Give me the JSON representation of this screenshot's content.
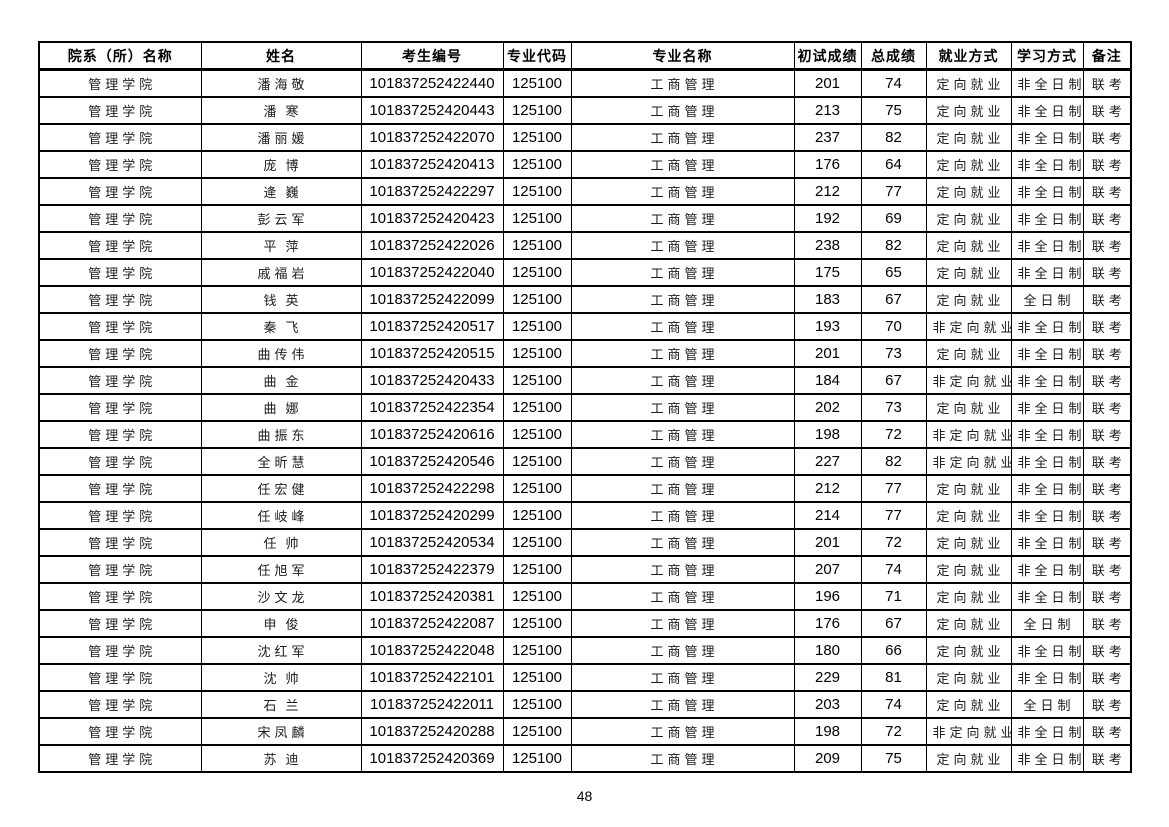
{
  "page": {
    "number": "48"
  },
  "table": {
    "columns": [
      {
        "key": "dept",
        "label": "院系（所）名称"
      },
      {
        "key": "name",
        "label": "姓名"
      },
      {
        "key": "candidate_no",
        "label": "考生编号"
      },
      {
        "key": "major_code",
        "label": "专业代码"
      },
      {
        "key": "major_name",
        "label": "专业名称"
      },
      {
        "key": "initial_score",
        "label": "初试成绩"
      },
      {
        "key": "total_score",
        "label": "总成绩"
      },
      {
        "key": "employment",
        "label": "就业方式"
      },
      {
        "key": "study_mode",
        "label": "学习方式"
      },
      {
        "key": "remark",
        "label": "备注"
      }
    ],
    "rows": [
      [
        "管理学院",
        "潘海敬",
        "101837252422440",
        "125100",
        "工商管理",
        "201",
        "74",
        "定向就业",
        "非全日制",
        "联考"
      ],
      [
        "管理学院",
        "潘寒",
        "101837252420443",
        "125100",
        "工商管理",
        "213",
        "75",
        "定向就业",
        "非全日制",
        "联考"
      ],
      [
        "管理学院",
        "潘丽媛",
        "101837252422070",
        "125100",
        "工商管理",
        "237",
        "82",
        "定向就业",
        "非全日制",
        "联考"
      ],
      [
        "管理学院",
        "庞博",
        "101837252420413",
        "125100",
        "工商管理",
        "176",
        "64",
        "定向就业",
        "非全日制",
        "联考"
      ],
      [
        "管理学院",
        "逄巍",
        "101837252422297",
        "125100",
        "工商管理",
        "212",
        "77",
        "定向就业",
        "非全日制",
        "联考"
      ],
      [
        "管理学院",
        "彭云军",
        "101837252420423",
        "125100",
        "工商管理",
        "192",
        "69",
        "定向就业",
        "非全日制",
        "联考"
      ],
      [
        "管理学院",
        "平萍",
        "101837252422026",
        "125100",
        "工商管理",
        "238",
        "82",
        "定向就业",
        "非全日制",
        "联考"
      ],
      [
        "管理学院",
        "戚福岩",
        "101837252422040",
        "125100",
        "工商管理",
        "175",
        "65",
        "定向就业",
        "非全日制",
        "联考"
      ],
      [
        "管理学院",
        "钱英",
        "101837252422099",
        "125100",
        "工商管理",
        "183",
        "67",
        "定向就业",
        "全日制",
        "联考"
      ],
      [
        "管理学院",
        "秦飞",
        "101837252420517",
        "125100",
        "工商管理",
        "193",
        "70",
        "非定向就业",
        "非全日制",
        "联考"
      ],
      [
        "管理学院",
        "曲传伟",
        "101837252420515",
        "125100",
        "工商管理",
        "201",
        "73",
        "定向就业",
        "非全日制",
        "联考"
      ],
      [
        "管理学院",
        "曲金",
        "101837252420433",
        "125100",
        "工商管理",
        "184",
        "67",
        "非定向就业",
        "非全日制",
        "联考"
      ],
      [
        "管理学院",
        "曲娜",
        "101837252422354",
        "125100",
        "工商管理",
        "202",
        "73",
        "定向就业",
        "非全日制",
        "联考"
      ],
      [
        "管理学院",
        "曲振东",
        "101837252420616",
        "125100",
        "工商管理",
        "198",
        "72",
        "非定向就业",
        "非全日制",
        "联考"
      ],
      [
        "管理学院",
        "全昕慧",
        "101837252420546",
        "125100",
        "工商管理",
        "227",
        "82",
        "非定向就业",
        "非全日制",
        "联考"
      ],
      [
        "管理学院",
        "任宏健",
        "101837252422298",
        "125100",
        "工商管理",
        "212",
        "77",
        "定向就业",
        "非全日制",
        "联考"
      ],
      [
        "管理学院",
        "任岐峰",
        "101837252420299",
        "125100",
        "工商管理",
        "214",
        "77",
        "定向就业",
        "非全日制",
        "联考"
      ],
      [
        "管理学院",
        "任帅",
        "101837252420534",
        "125100",
        "工商管理",
        "201",
        "72",
        "定向就业",
        "非全日制",
        "联考"
      ],
      [
        "管理学院",
        "任旭军",
        "101837252422379",
        "125100",
        "工商管理",
        "207",
        "74",
        "定向就业",
        "非全日制",
        "联考"
      ],
      [
        "管理学院",
        "沙文龙",
        "101837252420381",
        "125100",
        "工商管理",
        "196",
        "71",
        "定向就业",
        "非全日制",
        "联考"
      ],
      [
        "管理学院",
        "申俊",
        "101837252422087",
        "125100",
        "工商管理",
        "176",
        "67",
        "定向就业",
        "全日制",
        "联考"
      ],
      [
        "管理学院",
        "沈红军",
        "101837252422048",
        "125100",
        "工商管理",
        "180",
        "66",
        "定向就业",
        "非全日制",
        "联考"
      ],
      [
        "管理学院",
        "沈帅",
        "101837252422101",
        "125100",
        "工商管理",
        "229",
        "81",
        "定向就业",
        "非全日制",
        "联考"
      ],
      [
        "管理学院",
        "石兰",
        "101837252422011",
        "125100",
        "工商管理",
        "203",
        "74",
        "定向就业",
        "全日制",
        "联考"
      ],
      [
        "管理学院",
        "宋凤麟",
        "101837252420288",
        "125100",
        "工商管理",
        "198",
        "72",
        "非定向就业",
        "非全日制",
        "联考"
      ],
      [
        "管理学院",
        "苏迪",
        "101837252420369",
        "125100",
        "工商管理",
        "209",
        "75",
        "定向就业",
        "非全日制",
        "联考"
      ]
    ]
  }
}
